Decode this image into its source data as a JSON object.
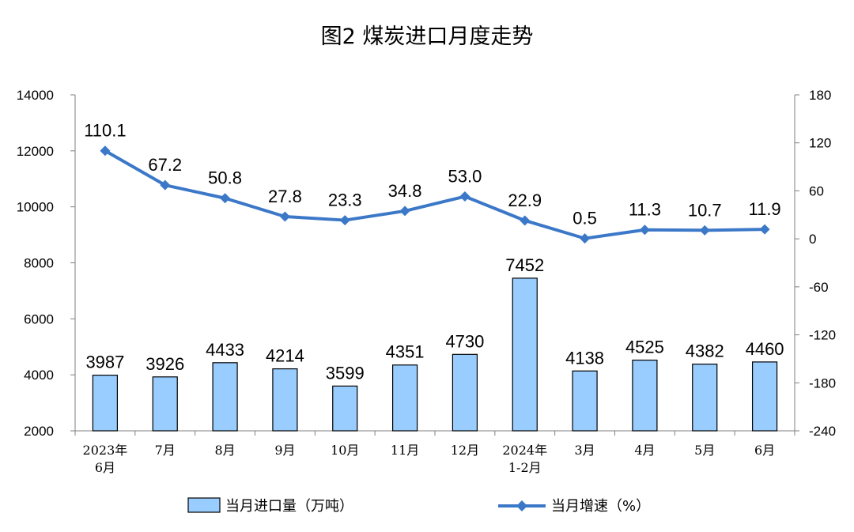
{
  "chart_data": {
    "type": "bar",
    "title": "图2  煤炭进口月度走势",
    "categories": [
      [
        "2023年",
        "6月"
      ],
      [
        "7月"
      ],
      [
        "8月"
      ],
      [
        "9月"
      ],
      [
        "10月"
      ],
      [
        "11月"
      ],
      [
        "12月"
      ],
      [
        "2024年",
        "1-2月"
      ],
      [
        "3月"
      ],
      [
        "4月"
      ],
      [
        "5月"
      ],
      [
        "6月"
      ]
    ],
    "series": [
      {
        "name": "当月进口量（万吨）",
        "type": "bar",
        "axis": "left",
        "values": [
          3987,
          3926,
          4433,
          4214,
          3599,
          4351,
          4730,
          7452,
          4138,
          4525,
          4382,
          4460
        ],
        "labels": [
          "3987",
          "3926",
          "4433",
          "4214",
          "3599",
          "4351",
          "4730",
          "7452",
          "4138",
          "4525",
          "4382",
          "4460"
        ],
        "color": "#99CCFF"
      },
      {
        "name": "当月增速（%）",
        "type": "line",
        "axis": "right",
        "values": [
          110.1,
          67.2,
          50.8,
          27.8,
          23.3,
          34.8,
          53.0,
          22.9,
          0.5,
          11.3,
          10.7,
          11.9
        ],
        "labels": [
          "110.1",
          "67.2",
          "50.8",
          "27.8",
          "23.3",
          "34.8",
          "53.0",
          "22.9",
          "0.5",
          "11.3",
          "10.7",
          "11.9"
        ],
        "color": "#3C78C8"
      }
    ],
    "left_axis": {
      "min": 2000,
      "max": 14000,
      "ticks": [
        2000,
        4000,
        6000,
        8000,
        10000,
        12000,
        14000
      ]
    },
    "right_axis": {
      "min": -240,
      "max": 180,
      "ticks": [
        -240,
        -180,
        -120,
        -60,
        0,
        60,
        120,
        180
      ]
    },
    "grid": false,
    "legend_position": "bottom"
  }
}
